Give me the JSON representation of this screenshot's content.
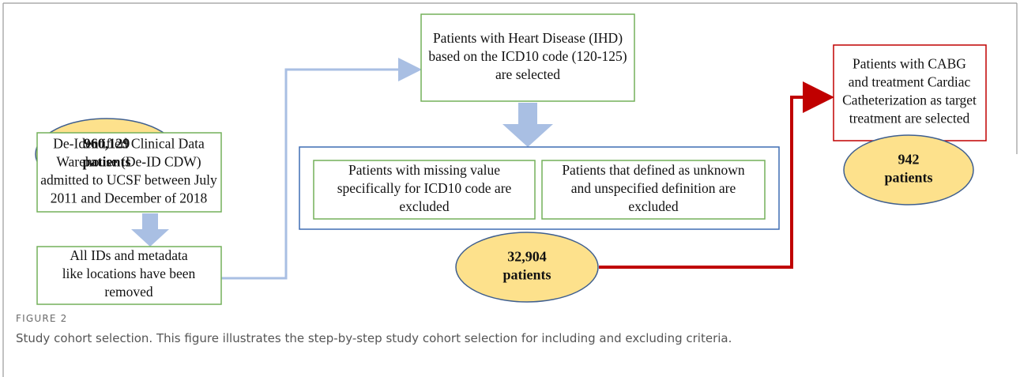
{
  "nodes": [
    {
      "label": [
        "960,129",
        "patients"
      ]
    },
    {
      "label": [
        "De-Identified Clinical Data",
        "Warehouse (De-ID CDW)",
        "admitted to UCSF between July",
        "2011 and December of 2018"
      ]
    },
    {
      "label": [
        "All IDs and metadata",
        "like locations have been",
        "removed"
      ]
    },
    {
      "label": [
        "Patients with Heart Disease (IHD)",
        "based on the ICD10 code (120-125)",
        "are selected"
      ]
    },
    {
      "label": [
        "Patients with missing value",
        "specifically for ICD10 code are",
        "excluded"
      ]
    },
    {
      "label": [
        "Patients that defined as unknown",
        "and unspecified definition are",
        "excluded"
      ]
    },
    {
      "label": [
        "32,904",
        "patients"
      ]
    },
    {
      "label": [
        "Patients with CABG",
        "and treatment Cardiac",
        "Catheterization as target",
        "treatment are selected"
      ]
    },
    {
      "label": [
        "942",
        "patients"
      ]
    }
  ],
  "figure": {
    "number": "FIGURE 2",
    "caption": "Study cohort selection. This figure illustrates the step-by-step study cohort selection for including and excluding criteria."
  }
}
